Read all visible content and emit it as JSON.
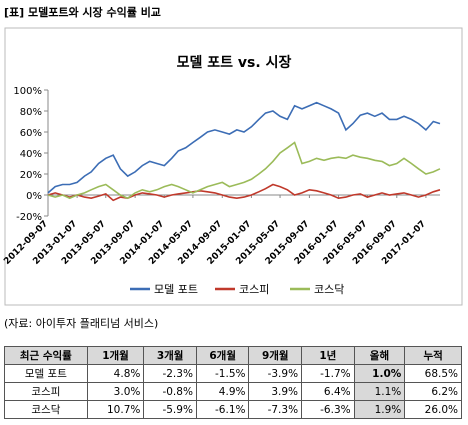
{
  "header": {
    "title": "[표] 모델포트와 시장 수익률 비교"
  },
  "chart_data": {
    "type": "line",
    "title": "모델 포트 vs. 시장",
    "x": [
      "2012-09-07",
      "2012-10-07",
      "2012-11-07",
      "2012-12-07",
      "2013-01-07",
      "2013-02-07",
      "2013-03-07",
      "2013-04-07",
      "2013-05-07",
      "2013-06-07",
      "2013-07-07",
      "2013-08-07",
      "2013-09-07",
      "2013-10-07",
      "2013-11-07",
      "2013-12-07",
      "2014-01-07",
      "2014-02-07",
      "2014-03-07",
      "2014-04-07",
      "2014-05-07",
      "2014-06-07",
      "2014-07-07",
      "2014-08-07",
      "2014-09-07",
      "2014-10-07",
      "2014-11-07",
      "2014-12-07",
      "2015-01-07",
      "2015-02-07",
      "2015-03-07",
      "2015-04-07",
      "2015-05-07",
      "2015-06-07",
      "2015-07-07",
      "2015-08-07",
      "2015-09-07",
      "2015-10-07",
      "2015-11-07",
      "2015-12-07",
      "2016-01-07",
      "2016-02-07",
      "2016-03-07",
      "2016-04-07",
      "2016-05-07",
      "2016-06-07",
      "2016-07-07",
      "2016-08-07",
      "2016-09-07",
      "2016-10-07",
      "2016-11-07",
      "2016-12-07",
      "2017-01-07",
      "2017-02-07",
      "2017-03-07"
    ],
    "xlim": [
      "2012-09-07",
      "2017-03-07"
    ],
    "xticks": [
      "2012-09-07",
      "2013-01-07",
      "2013-05-07",
      "2013-09-07",
      "2014-01-07",
      "2014-05-07",
      "2014-09-07",
      "2015-01-07",
      "2015-05-07",
      "2015-09-07",
      "2016-01-07",
      "2016-05-07",
      "2016-09-07",
      "2017-01-07"
    ],
    "ylim": [
      -20,
      100
    ],
    "yticks": [
      {
        "value": -20,
        "label": "-20%"
      },
      {
        "value": 0,
        "label": "0%"
      },
      {
        "value": 20,
        "label": "20%"
      },
      {
        "value": 40,
        "label": "40%"
      },
      {
        "value": 60,
        "label": "60%"
      },
      {
        "value": 80,
        "label": "80%"
      },
      {
        "value": 100,
        "label": "100%"
      }
    ],
    "series": [
      {
        "name": "모델 포트",
        "color": "#3c6db5",
        "values": [
          2,
          8,
          10,
          10,
          12,
          18,
          22,
          30,
          35,
          38,
          25,
          18,
          22,
          28,
          32,
          30,
          28,
          35,
          42,
          45,
          50,
          55,
          60,
          62,
          60,
          58,
          62,
          60,
          65,
          72,
          78,
          80,
          75,
          72,
          85,
          82,
          85,
          88,
          85,
          82,
          78,
          62,
          68,
          76,
          78,
          75,
          78,
          72,
          72,
          75,
          72,
          68,
          62,
          70,
          68
        ]
      },
      {
        "name": "코스피",
        "color": "#c0392b",
        "values": [
          0,
          2,
          0,
          -2,
          0,
          -2,
          -3,
          -1,
          1,
          -5,
          -2,
          -3,
          0,
          2,
          1,
          0,
          -2,
          0,
          1,
          2,
          3,
          4,
          3,
          2,
          0,
          -2,
          -3,
          -2,
          0,
          3,
          6,
          10,
          8,
          5,
          0,
          2,
          5,
          4,
          2,
          0,
          -3,
          -2,
          0,
          1,
          -2,
          0,
          2,
          0,
          1,
          2,
          0,
          -2,
          0,
          3,
          5
        ]
      },
      {
        "name": "코스닥",
        "color": "#9bbb59",
        "values": [
          0,
          -2,
          0,
          -3,
          0,
          2,
          5,
          8,
          10,
          5,
          0,
          -3,
          2,
          5,
          3,
          5,
          8,
          10,
          8,
          5,
          2,
          5,
          8,
          10,
          12,
          8,
          10,
          12,
          15,
          20,
          25,
          32,
          40,
          45,
          50,
          30,
          32,
          35,
          33,
          35,
          36,
          35,
          38,
          36,
          35,
          33,
          32,
          28,
          30,
          35,
          30,
          25,
          20,
          22,
          25
        ]
      }
    ],
    "legend": "bottom"
  },
  "source": "(자료: 아이투자 플래티넘 서비스)",
  "table": {
    "header": [
      "최근 수익률",
      "1개월",
      "3개월",
      "6개월",
      "9개월",
      "1년",
      "올해",
      "누적"
    ],
    "rows": [
      [
        "모델 포트",
        "4.8%",
        "-2.3%",
        "-1.5%",
        "-3.9%",
        "-1.7%",
        "1.0%",
        "68.5%"
      ],
      [
        "코스피",
        "3.0%",
        "-0.8%",
        "4.9%",
        "3.9%",
        "6.4%",
        "1.1%",
        "6.2%"
      ],
      [
        "코스닥",
        "10.7%",
        "-5.9%",
        "-6.1%",
        "-7.3%",
        "-6.3%",
        "1.9%",
        "26.0%"
      ]
    ]
  }
}
